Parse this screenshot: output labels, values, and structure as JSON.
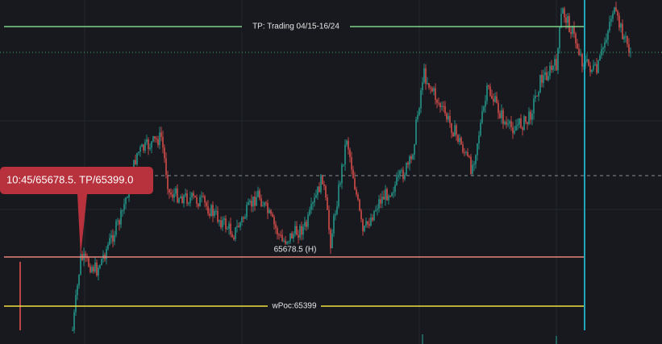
{
  "levels": {
    "tp": "TP: Trading 04/15-16/24",
    "high": "65678.5 (H)",
    "wpoc": "wPoc:65399"
  },
  "callout": "10:45/65678.5. TP/65399.0"
}
